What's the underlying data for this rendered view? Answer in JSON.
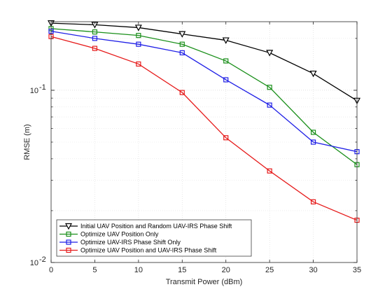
{
  "chart_data": {
    "type": "line",
    "title": "",
    "xlabel": "Transmit Power (dBm)",
    "ylabel": "RMSE (m)",
    "xlim": [
      0,
      35
    ],
    "ylim": [
      0.01,
      0.25
    ],
    "y_scale": "log",
    "grid": true,
    "legend_placement": "bottom-left",
    "x_ticks": [
      0,
      5,
      10,
      15,
      20,
      25,
      30,
      35
    ],
    "y_ticks": [
      {
        "value": 0.01,
        "base": "10",
        "exp": "-2"
      },
      {
        "value": 0.1,
        "base": "10",
        "exp": "-1"
      }
    ],
    "x": [
      0,
      5,
      10,
      15,
      20,
      25,
      30,
      35
    ],
    "series": [
      {
        "name": "Initial UAV Position and Random UAV-IRS Phase Shift",
        "color": "#000000",
        "marker": "triangle-down",
        "values": [
          0.245,
          0.24,
          0.231,
          0.212,
          0.195,
          0.165,
          0.125,
          0.087
        ]
      },
      {
        "name": "Optimize UAV Position Only",
        "color": "#1a8f1a",
        "marker": "square",
        "values": [
          0.228,
          0.218,
          0.208,
          0.185,
          0.148,
          0.104,
          0.057,
          0.037
        ]
      },
      {
        "name": "Optimize UAV-IRS Phase Shift Only",
        "color": "#1f1fe6",
        "marker": "square",
        "values": [
          0.22,
          0.2,
          0.185,
          0.165,
          0.115,
          0.082,
          0.05,
          0.044
        ]
      },
      {
        "name": "Optimize UAV Position and UAV-IRS Phase Shift",
        "color": "#e61a1a",
        "marker": "square",
        "values": [
          0.205,
          0.175,
          0.142,
          0.097,
          0.053,
          0.034,
          0.0225,
          0.0176
        ]
      }
    ]
  }
}
